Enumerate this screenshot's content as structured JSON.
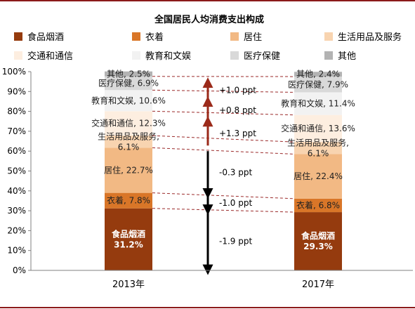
{
  "chart_data": {
    "type": "bar",
    "stacked": true,
    "title": "全国居民人均消费支出构成",
    "categories": [
      "2013年",
      "2017年"
    ],
    "ylim": [
      0,
      100
    ],
    "ytick_labels": [
      "0%",
      "10%",
      "20%",
      "30%",
      "40%",
      "50%",
      "60%",
      "70%",
      "80%",
      "90%",
      "100%"
    ],
    "ytick_values": [
      0,
      10,
      20,
      30,
      40,
      50,
      60,
      70,
      80,
      90,
      100
    ],
    "legend_position": "top",
    "series": [
      {
        "name": "食品烟酒",
        "color": "#953b0e",
        "values": [
          31.2,
          29.3
        ],
        "labels": [
          "食品烟酒\n31.2%",
          "食品烟酒\n29.3%"
        ],
        "label_color": "#ffffff"
      },
      {
        "name": "衣着",
        "color": "#d97628",
        "values": [
          7.8,
          6.8
        ],
        "labels": [
          "衣着, 7.8%",
          "衣着, 6.8%"
        ],
        "label_color": "#222222"
      },
      {
        "name": "居住",
        "color": "#f2b984",
        "values": [
          22.7,
          22.4
        ],
        "labels": [
          "居住, 22.7%",
          "居住, 22.4%"
        ],
        "label_color": "#222222"
      },
      {
        "name": "生活用品及服务",
        "color": "#f8d4b0",
        "values": [
          6.1,
          6.1
        ],
        "labels": [
          "生活用品及服务,\n6.1%",
          "生活用品及服务,\n6.1%"
        ],
        "label_color": "#222222"
      },
      {
        "name": "交通和通信",
        "color": "#fdeee0",
        "values": [
          12.3,
          13.6
        ],
        "labels": [
          "交通和通信, 12.3%",
          "交通和通信, 13.6%"
        ],
        "label_color": "#222222"
      },
      {
        "name": "教育和文娱",
        "color": "#f2f2f2",
        "values": [
          10.6,
          11.4
        ],
        "labels": [
          "教育和文娱, 10.6%",
          "教育和文娱, 11.4%"
        ],
        "label_color": "#222222"
      },
      {
        "name": "医疗保健",
        "color": "#d9d9d9",
        "values": [
          6.9,
          7.9
        ],
        "labels": [
          "医疗保健, 6.9%",
          "医疗保健, 7.9%"
        ],
        "label_color": "#222222"
      },
      {
        "name": "其他",
        "color": "#b3b3b3",
        "values": [
          2.5,
          2.4
        ],
        "labels": [
          "其他, 2.5%",
          "其他, 2.4%"
        ],
        "label_color": "#222222"
      }
    ],
    "annotations": [
      {
        "text": "+1.0 ppt",
        "direction": "up",
        "from": 86.7,
        "to": 94.5
      },
      {
        "text": "+0.8 ppt",
        "direction": "up",
        "from": 76.0,
        "to": 85.0
      },
      {
        "text": "+1.3 ppt",
        "direction": "up",
        "from": 62.8,
        "to": 75.0
      },
      {
        "text": "-0.3 ppt",
        "direction": "down",
        "from": 60.0,
        "to": 38.7
      },
      {
        "text": "-1.0 ppt",
        "direction": "down",
        "from": 37.2,
        "to": 30.5
      },
      {
        "text": "-1.9 ppt",
        "direction": "down",
        "from": 29.2,
        "to": 0.3
      }
    ],
    "grid": false
  },
  "colors": {
    "border": "#8b1a1a",
    "connector": "#9b2a2a",
    "axis": "#808080",
    "arrow": "#9b2a1a",
    "arrow_down": "#000000"
  }
}
